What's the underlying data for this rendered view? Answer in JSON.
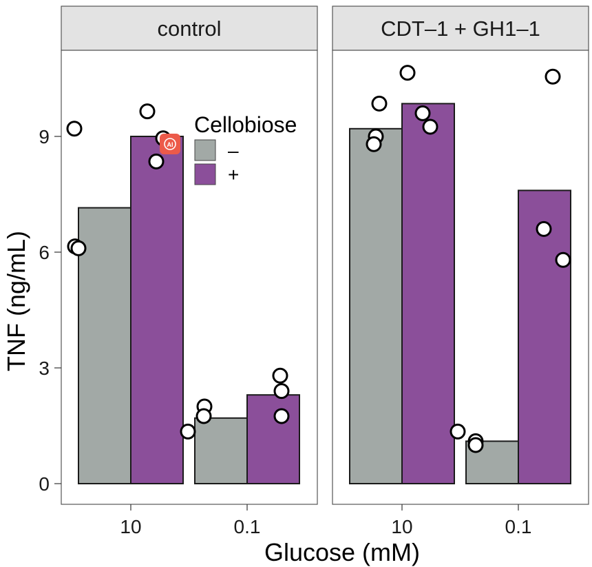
{
  "chart_data": {
    "type": "bar",
    "title": "",
    "xlabel": "Glucose (mM)",
    "ylabel": "TNF (ng/mL)",
    "ylim": [
      -0.6,
      11.1
    ],
    "yticks": [
      0,
      3,
      6,
      9
    ],
    "ytick_labels": [
      "0",
      "3",
      "6",
      "9"
    ],
    "categories": [
      "10",
      "0.1"
    ],
    "grid": false,
    "legend": {
      "title": "Cellobiose",
      "placement": "inside-top-right of first panel",
      "entries": [
        {
          "label": "–",
          "color": "#a2a9a6"
        },
        {
          "label": "+",
          "color": "#8b4f9a"
        }
      ]
    },
    "panels": [
      {
        "strip": "control",
        "series": [
          {
            "name": "–",
            "values": [
              7.15,
              1.7
            ],
            "points": [
              [
                9.2,
                6.15,
                6.1
              ],
              [
                2.0,
                1.75,
                1.35
              ]
            ]
          },
          {
            "name": "+",
            "values": [
              9.0,
              2.3
            ],
            "points": [
              [
                9.65,
                8.95,
                8.35
              ],
              [
                2.8,
                2.4,
                1.75
              ]
            ]
          }
        ]
      },
      {
        "strip": "CDT–1 + GH1–1",
        "series": [
          {
            "name": "–",
            "values": [
              9.2,
              1.1
            ],
            "points": [
              [
                9.85,
                9.0,
                8.8
              ],
              [
                1.35,
                1.1,
                1.0
              ]
            ]
          },
          {
            "name": "+",
            "values": [
              9.85,
              7.6
            ],
            "points": [
              [
                10.65,
                9.6,
                9.25
              ],
              [
                10.55,
                6.6,
                5.8
              ]
            ]
          }
        ]
      }
    ],
    "colors": {
      "minus": "#a2a9a6",
      "plus": "#8b4f9a",
      "strip_bg": "#e3e3e3",
      "frame": "#555555"
    }
  },
  "overlay": {
    "badge_text": "AI"
  }
}
